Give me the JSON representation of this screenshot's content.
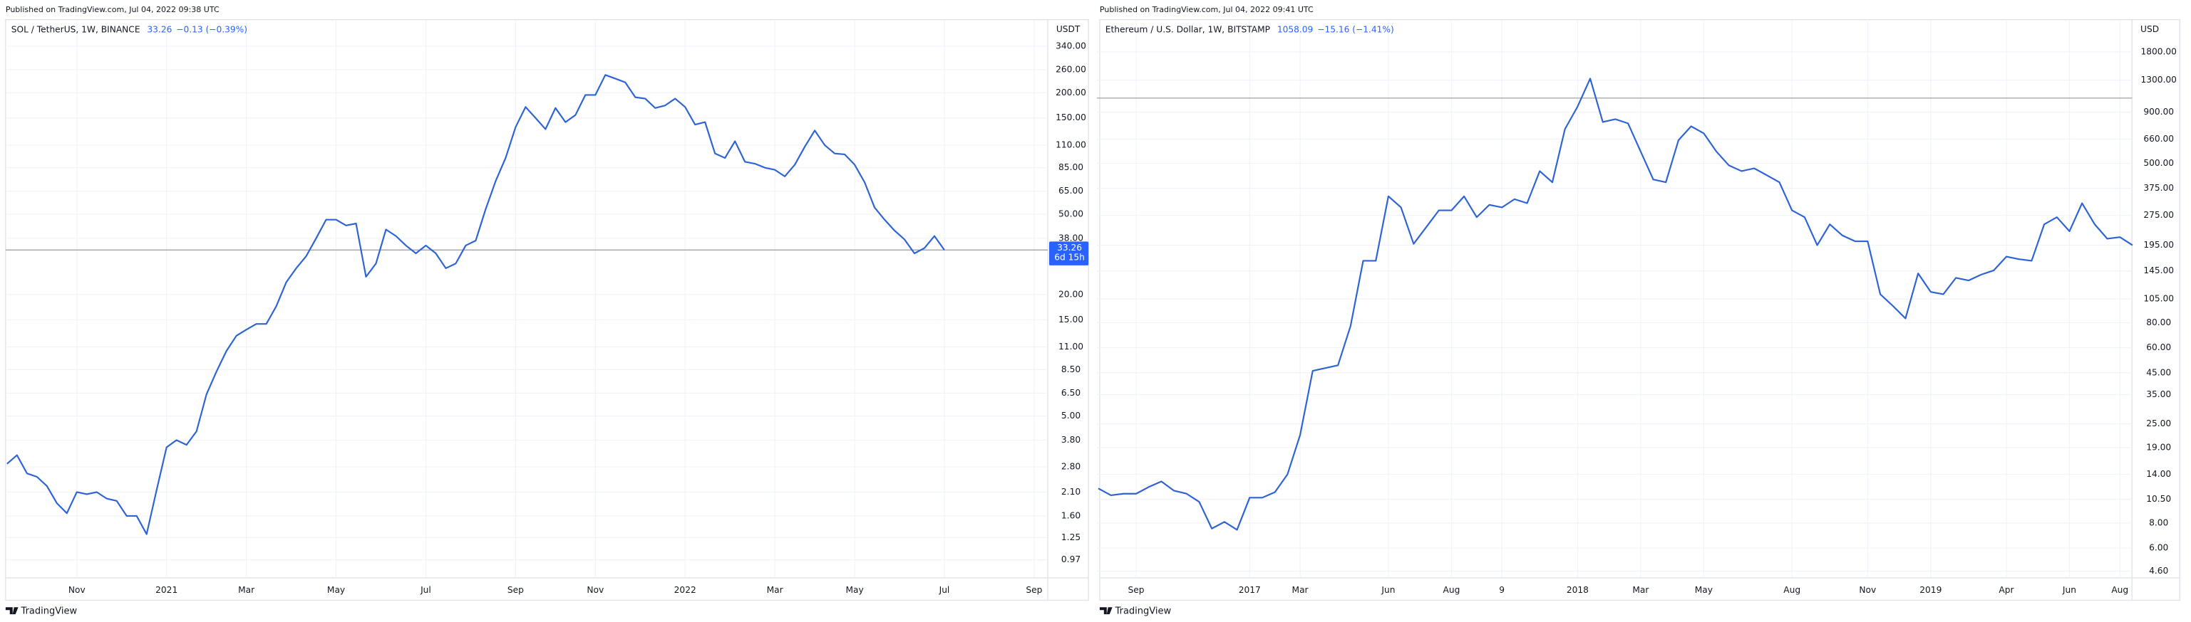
{
  "chart_data": [
    {
      "type": "line",
      "log_scale": true,
      "grid": true,
      "color": "#2e63d6",
      "source": "Published on TradingView.com, Jul 04, 2022 09:38 UTC",
      "symbol": "SOL / TetherUS, 1W, BINANCE",
      "last": 33.26,
      "change": "−0.13 (−0.39%)",
      "countdown": "6d 15h",
      "currency": "USDT",
      "footer": "TradingView",
      "categories": [
        null,
        null,
        null,
        null,
        null,
        null,
        null,
        "Nov",
        null,
        null,
        null,
        null,
        null,
        null,
        null,
        null,
        "2021",
        null,
        null,
        null,
        null,
        null,
        null,
        null,
        "Mar",
        null,
        null,
        null,
        null,
        null,
        null,
        null,
        null,
        "May",
        null,
        null,
        null,
        null,
        null,
        null,
        null,
        null,
        "Jul",
        null,
        null,
        null,
        null,
        null,
        null,
        null,
        null,
        "Sep",
        null,
        null,
        null,
        null,
        null,
        null,
        null,
        "Nov",
        null,
        null,
        null,
        null,
        null,
        null,
        null,
        null,
        "2022",
        null,
        null,
        null,
        null,
        null,
        null,
        null,
        null,
        "Mar",
        null,
        null,
        null,
        null,
        null,
        null,
        null,
        "May",
        null,
        null,
        null,
        null,
        null,
        null,
        null,
        null,
        "Jul",
        null,
        null,
        null,
        null,
        null,
        null,
        null,
        null,
        "Sep",
        null
      ],
      "values": [
        2.9,
        3.2,
        2.6,
        2.5,
        2.25,
        1.85,
        1.65,
        2.1,
        2.05,
        2.1,
        1.95,
        1.9,
        1.6,
        1.6,
        1.3,
        2.15,
        3.5,
        3.8,
        3.6,
        4.2,
        6.4,
        8.3,
        10.5,
        12.5,
        13.4,
        14.3,
        14.3,
        17.5,
        23,
        27,
        31,
        38,
        47,
        47,
        44,
        45,
        24.5,
        28.5,
        42,
        39,
        35,
        32,
        35,
        32,
        27,
        28.5,
        35,
        37,
        53,
        73,
        95,
        135,
        170,
        150,
        132,
        168,
        143,
        155,
        195,
        195,
        245,
        235,
        225,
        190,
        187,
        168,
        173,
        187,
        170,
        139,
        143,
        100,
        95,
        115,
        91,
        89,
        85,
        83,
        77,
        88,
        108,
        130,
        110,
        100,
        99,
        88,
        72,
        54,
        47,
        41.5,
        37.5,
        32,
        34,
        39,
        33.26,
        null,
        null,
        null,
        null,
        null,
        null,
        null,
        null,
        null,
        null
      ],
      "ylim": [
        0.79,
        453
      ],
      "yticks": [
        {
          "value": 340,
          "label": "340.00"
        },
        {
          "value": 260,
          "label": "260.00"
        },
        {
          "value": 200,
          "label": "200.00"
        },
        {
          "value": 150,
          "label": "150.00"
        },
        {
          "value": 110,
          "label": "110.00"
        },
        {
          "value": 85,
          "label": "85.00"
        },
        {
          "value": 65,
          "label": "65.00"
        },
        {
          "value": 50,
          "label": "50.00"
        },
        {
          "value": 38,
          "label": "38.00"
        },
        {
          "value": 20,
          "label": "20.00"
        },
        {
          "value": 15,
          "label": "15.00"
        },
        {
          "value": 11,
          "label": "11.00"
        },
        {
          "value": 8.5,
          "label": "8.50"
        },
        {
          "value": 6.5,
          "label": "6.50"
        },
        {
          "value": 5,
          "label": "5.00"
        },
        {
          "value": 3.8,
          "label": "3.80"
        },
        {
          "value": 2.8,
          "label": "2.80"
        },
        {
          "value": 2.1,
          "label": "2.10"
        },
        {
          "value": 1.6,
          "label": "1.60"
        },
        {
          "value": 1.25,
          "label": "1.25"
        },
        {
          "value": 0.97,
          "label": "0.97"
        }
      ]
    },
    {
      "type": "line",
      "log_scale": true,
      "grid": true,
      "color": "#2e63d6",
      "source": "Published on TradingView.com, Jul 04, 2022 09:41 UTC",
      "symbol": "Ethereum / U.S. Dollar, 1W, BITSTAMP",
      "last": 1058.09,
      "change": "−15.16 (−1.41%)",
      "currency": "USD",
      "footer": "TradingView",
      "categories": [
        null,
        null,
        null,
        "Sep",
        null,
        null,
        null,
        null,
        null,
        null,
        null,
        null,
        "2017",
        null,
        null,
        null,
        "Mar",
        null,
        null,
        null,
        null,
        null,
        null,
        "Jun",
        null,
        null,
        null,
        null,
        "Aug",
        null,
        null,
        null,
        "9",
        null,
        null,
        null,
        null,
        null,
        "2018",
        null,
        null,
        null,
        null,
        "Mar",
        null,
        null,
        null,
        null,
        "May",
        null,
        null,
        null,
        null,
        null,
        null,
        "Aug",
        null,
        null,
        null,
        null,
        null,
        "Nov",
        null,
        null,
        null,
        null,
        "2019",
        null,
        null,
        null,
        null,
        null,
        "Apr",
        null,
        null,
        null,
        null,
        "Jun",
        null,
        null,
        null,
        "Aug",
        null
      ],
      "values": [
        11.9,
        11.0,
        11.2,
        11.2,
        12.1,
        12.9,
        11.6,
        11.2,
        10.2,
        7.5,
        8.1,
        7.4,
        10.7,
        10.7,
        11.4,
        14.0,
        22.0,
        46,
        47.5,
        49,
        77,
        163,
        163,
        342,
        301,
        198,
        240,
        291,
        291,
        342,
        269,
        310,
        301,
        331,
        316,
        457,
        402,
        741,
        960,
        1324,
        804,
        830,
        791,
        573,
        415,
        402,
        652,
        765,
        706,
        573,
        488,
        457,
        472,
        436,
        402,
        291,
        269,
        195,
        248,
        218,
        204,
        204,
        111,
        97,
        84,
        141,
        114,
        111,
        134,
        130,
        139,
        146,
        171,
        166,
        163,
        248,
        269,
        229,
        316,
        248,
        210,
        214,
        195
      ],
      "ylim": [
        4.26,
        2565
      ],
      "yticks": [
        {
          "value": 1800,
          "label": "1800.00"
        },
        {
          "value": 1300,
          "label": "1300.00"
        },
        {
          "value": 900,
          "label": "900.00"
        },
        {
          "value": 660,
          "label": "660.00"
        },
        {
          "value": 500,
          "label": "500.00"
        },
        {
          "value": 375,
          "label": "375.00"
        },
        {
          "value": 275,
          "label": "275.00"
        },
        {
          "value": 195,
          "label": "195.00"
        },
        {
          "value": 145,
          "label": "145.00"
        },
        {
          "value": 105,
          "label": "105.00"
        },
        {
          "value": 80,
          "label": "80.00"
        },
        {
          "value": 60,
          "label": "60.00"
        },
        {
          "value": 45,
          "label": "45.00"
        },
        {
          "value": 35,
          "label": "35.00"
        },
        {
          "value": 25,
          "label": "25.00"
        },
        {
          "value": 19,
          "label": "19.00"
        },
        {
          "value": 14,
          "label": "14.00"
        },
        {
          "value": 10.5,
          "label": "10.50"
        },
        {
          "value": 8,
          "label": "8.00"
        },
        {
          "value": 6,
          "label": "6.00"
        },
        {
          "value": 4.6,
          "label": "4.60"
        }
      ]
    }
  ]
}
